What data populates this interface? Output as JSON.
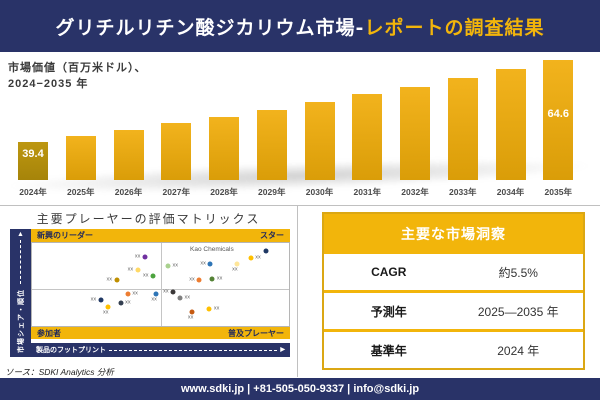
{
  "header": {
    "title_main": "グリチルリチン酸ジカリウム市場-",
    "title_accent": "レポートの調査結果"
  },
  "colors": {
    "navy": "#293368",
    "gold": "#F2B50B",
    "bar_gold": "#E2A40F",
    "bar_first": "#B28E0D"
  },
  "chart_data": [
    {
      "type": "bar",
      "title_line1": "市場価値（百万米ドル）、",
      "title_line2": "2024−2035 年",
      "categories": [
        "2024年",
        "2025年",
        "2026年",
        "2027年",
        "2028年",
        "2029年",
        "2030年",
        "2031年",
        "2032年",
        "2033年",
        "2034年",
        "2035年"
      ],
      "values": [
        39.4,
        41.2,
        43.1,
        45.1,
        47.2,
        49.3,
        51.6,
        54.0,
        56.4,
        59.0,
        61.7,
        64.6
      ],
      "value_labels": {
        "first": "39.4",
        "last": "64.6"
      },
      "ylabel": "市場価値（百万米ドル）",
      "xlabel": "年",
      "ylim": [
        0,
        70
      ],
      "grid": false,
      "legend": false
    },
    {
      "type": "scatter",
      "title": "主要プレーヤーの評価マトリックス",
      "x_axis_label": "製品のフットプリント",
      "y_axis_label": "市場シェア・順位",
      "quadrant_labels": {
        "top_left": "新興のリーダー",
        "top_right": "スター",
        "bottom_left": "参加者",
        "bottom_right": "普及プレーヤー"
      },
      "annotation": "Kao Chemicals",
      "points": [
        {
          "x": 43.9,
          "y": 17.1,
          "color": "#7030A0",
          "label": "xx",
          "label_pos": "left"
        },
        {
          "x": 41.1,
          "y": 32.6,
          "color": "#FFD966",
          "label": "xx",
          "label_pos": "left"
        },
        {
          "x": 32.9,
          "y": 45.1,
          "color": "#BF8F00",
          "label": "xx",
          "label_pos": "left"
        },
        {
          "x": 47.1,
          "y": 40.2,
          "color": "#4CA33E",
          "label": "xx",
          "label_pos": "left"
        },
        {
          "x": 37.3,
          "y": 61.0,
          "color": "#ED7D31",
          "label": "xx",
          "label_pos": "right"
        },
        {
          "x": 48.2,
          "y": 61.0,
          "color": "#2E75B6",
          "label": "xx",
          "label_pos": "below"
        },
        {
          "x": 26.7,
          "y": 68.3,
          "color": "#203864",
          "label": "xx",
          "label_pos": "left"
        },
        {
          "x": 34.5,
          "y": 72.0,
          "color": "#333F50",
          "label": "xx",
          "label_pos": "right"
        },
        {
          "x": 29.4,
          "y": 76.8,
          "color": "#FFC000",
          "label": "xx",
          "label_pos": "below"
        },
        {
          "x": 91.0,
          "y": 9.8,
          "color": "#1F3864",
          "label": "",
          "label_pos": "right"
        },
        {
          "x": 85.1,
          "y": 18.3,
          "color": "#FFC000",
          "label": "xx",
          "label_pos": "right"
        },
        {
          "x": 79.6,
          "y": 25.6,
          "color": "#FFE699",
          "label": "xx",
          "label_pos": "below"
        },
        {
          "x": 69.4,
          "y": 25.6,
          "color": "#2E75B6",
          "label": "xx",
          "label_pos": "left"
        },
        {
          "x": 52.9,
          "y": 28.0,
          "color": "#A9D18E",
          "label": "xx",
          "label_pos": "right"
        },
        {
          "x": 65.1,
          "y": 45.1,
          "color": "#ED7D31",
          "label": "xx",
          "label_pos": "left"
        },
        {
          "x": 70.2,
          "y": 43.9,
          "color": "#548235",
          "label": "xx",
          "label_pos": "right"
        },
        {
          "x": 54.9,
          "y": 58.5,
          "color": "#3B3838",
          "label": "xx",
          "label_pos": "left"
        },
        {
          "x": 57.6,
          "y": 65.9,
          "color": "#7F7F7F",
          "label": "xx",
          "label_pos": "right"
        },
        {
          "x": 62.4,
          "y": 82.9,
          "color": "#C55A11",
          "label": "xx",
          "label_pos": "below"
        },
        {
          "x": 69.0,
          "y": 79.3,
          "color": "#FFC000",
          "label": "xx",
          "label_pos": "right"
        }
      ]
    }
  ],
  "insights_table": {
    "title": "主要な市場洞察",
    "rows": [
      {
        "label": "CAGR",
        "value": "約5.5%"
      },
      {
        "label": "予測年",
        "value": "2025—2035 年"
      },
      {
        "label": "基準年",
        "value": "2024 年"
      }
    ]
  },
  "source_note": "ソース：SDKI Analytics 分析",
  "footer": {
    "text": "www.sdki.jp | +81-505-050-9337 | info@sdki.jp"
  }
}
